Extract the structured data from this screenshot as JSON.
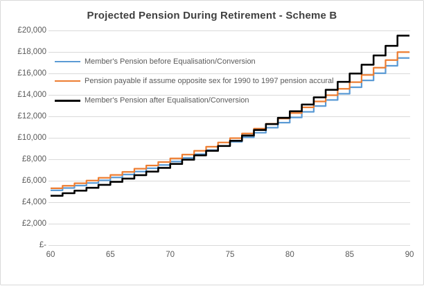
{
  "theme": {
    "background": "#ffffff",
    "frame_border": "#d9d9d9",
    "gridline_color": "#d9d9d9",
    "axis_label_color": "#595959",
    "title_color": "#404040"
  },
  "chart_data": {
    "type": "line",
    "step": true,
    "title": "Projected Pension During Retirement - Scheme B",
    "xlabel": "",
    "ylabel": "",
    "xlim": [
      60,
      90
    ],
    "ylim": [
      0,
      20000
    ],
    "grid": "horizontal-only",
    "legend_position": "inside-top-left",
    "x_ticks": [
      60,
      65,
      70,
      75,
      80,
      85,
      90
    ],
    "y_ticks": [
      {
        "value": 20000,
        "label": "£20,000"
      },
      {
        "value": 18000,
        "label": "£18,000"
      },
      {
        "value": 16000,
        "label": "£16,000"
      },
      {
        "value": 14000,
        "label": "£14,000"
      },
      {
        "value": 12000,
        "label": "£12,000"
      },
      {
        "value": 10000,
        "label": "£10,000"
      },
      {
        "value": 8000,
        "label": "£8,000"
      },
      {
        "value": 6000,
        "label": "£6,000"
      },
      {
        "value": 4000,
        "label": "£4,000"
      },
      {
        "value": 2000,
        "label": "£2,000"
      },
      {
        "value": 0,
        "label": "£-"
      }
    ],
    "age_start": 60,
    "age_end": 90,
    "series": [
      {
        "name": "Member's Pension before Equalisation/Conversion",
        "color": "#5B9BD5",
        "values": [
          5100,
          5320,
          5550,
          5790,
          6040,
          6300,
          6580,
          6860,
          7160,
          7470,
          7790,
          8130,
          8480,
          8850,
          9230,
          9630,
          10050,
          10480,
          10940,
          11410,
          11900,
          12420,
          12960,
          13520,
          14100,
          14710,
          15350,
          16010,
          16710,
          17430
        ]
      },
      {
        "name": "Pension payable if assume opposite sex for 1990 to 1997 pension accural",
        "color": "#ED7D31",
        "values": [
          5300,
          5530,
          5770,
          6010,
          6270,
          6540,
          6820,
          7120,
          7420,
          7740,
          8080,
          8430,
          8790,
          9170,
          9560,
          9970,
          10400,
          10850,
          11310,
          11800,
          12310,
          12840,
          13390,
          13970,
          14570,
          15190,
          15850,
          16530,
          17240,
          17980
        ]
      },
      {
        "name": "Member's Pension after Equalisation/Conversion",
        "color": "#000000",
        "values": [
          4600,
          4840,
          5080,
          5340,
          5620,
          5900,
          6200,
          6520,
          6850,
          7200,
          7570,
          7960,
          8370,
          8790,
          9240,
          9720,
          10210,
          10730,
          11280,
          11860,
          12470,
          13100,
          13770,
          14470,
          15210,
          15990,
          16810,
          17670,
          18570,
          19520
        ]
      }
    ]
  }
}
